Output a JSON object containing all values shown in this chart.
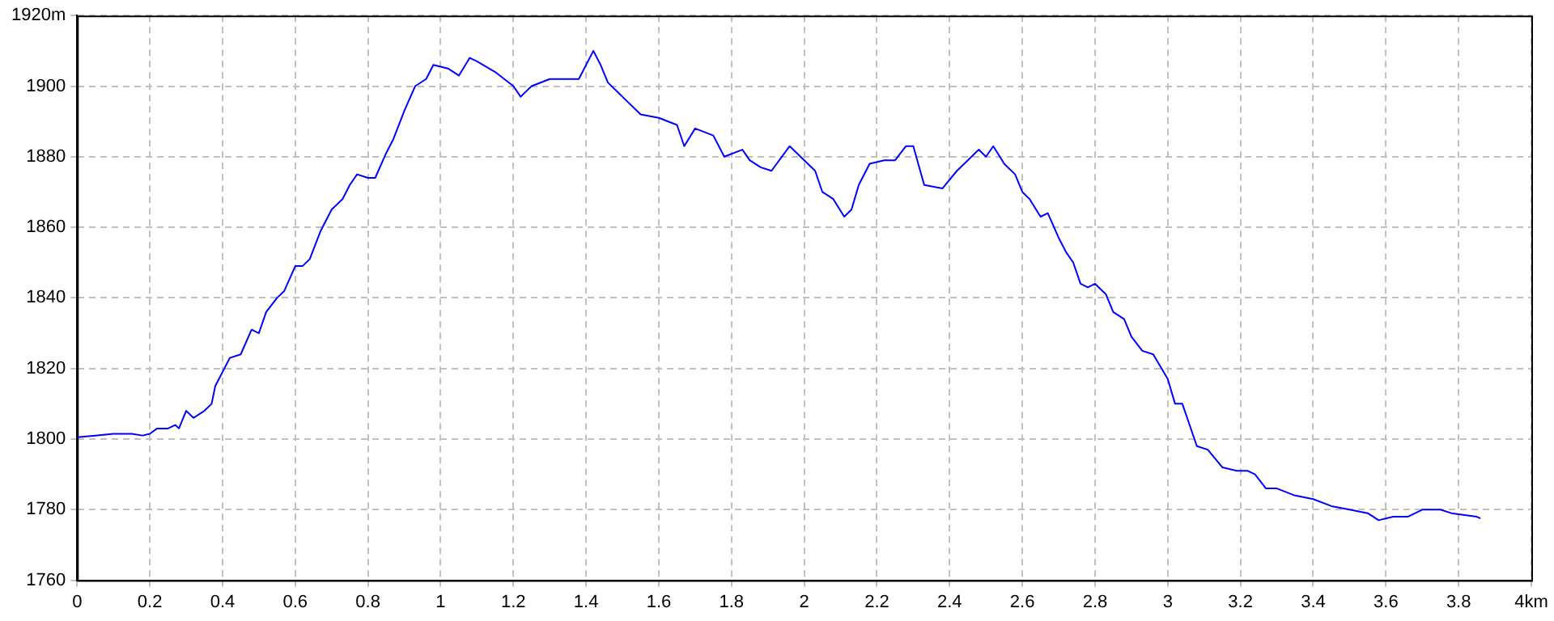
{
  "chart_data": {
    "type": "line",
    "x": [
      0,
      0.05,
      0.1,
      0.15,
      0.18,
      0.2,
      0.22,
      0.25,
      0.27,
      0.28,
      0.3,
      0.32,
      0.35,
      0.37,
      0.38,
      0.42,
      0.45,
      0.48,
      0.5,
      0.52,
      0.55,
      0.57,
      0.6,
      0.62,
      0.64,
      0.67,
      0.7,
      0.73,
      0.75,
      0.77,
      0.8,
      0.82,
      0.85,
      0.87,
      0.9,
      0.93,
      0.96,
      0.98,
      1.02,
      1.05,
      1.08,
      1.1,
      1.15,
      1.2,
      1.22,
      1.25,
      1.3,
      1.35,
      1.38,
      1.42,
      1.44,
      1.46,
      1.5,
      1.55,
      1.6,
      1.65,
      1.67,
      1.7,
      1.75,
      1.78,
      1.83,
      1.85,
      1.88,
      1.91,
      1.96,
      2.0,
      2.03,
      2.05,
      2.08,
      2.11,
      2.13,
      2.15,
      2.18,
      2.22,
      2.25,
      2.28,
      2.3,
      2.33,
      2.38,
      2.42,
      2.45,
      2.48,
      2.5,
      2.52,
      2.55,
      2.58,
      2.6,
      2.62,
      2.65,
      2.67,
      2.7,
      2.72,
      2.74,
      2.76,
      2.78,
      2.8,
      2.83,
      2.85,
      2.88,
      2.9,
      2.93,
      2.96,
      3.0,
      3.02,
      3.04,
      3.06,
      3.08,
      3.11,
      3.15,
      3.19,
      3.22,
      3.24,
      3.27,
      3.3,
      3.35,
      3.4,
      3.45,
      3.5,
      3.55,
      3.58,
      3.62,
      3.66,
      3.7,
      3.75,
      3.78,
      3.85,
      3.86
    ],
    "series": [
      {
        "color": "#0000ff",
        "values": [
          1800.5,
          1801,
          1801.5,
          1801.5,
          1801,
          1801.5,
          1803,
          1803,
          1804,
          1803,
          1808,
          1806,
          1808,
          1810,
          1815,
          1823,
          1824,
          1831,
          1830,
          1836,
          1840,
          1842,
          1849,
          1849,
          1851,
          1859,
          1865,
          1868,
          1872,
          1875,
          1874,
          1874,
          1881,
          1885,
          1893,
          1900,
          1902,
          1906,
          1905,
          1903,
          1908,
          1907,
          1904,
          1900,
          1897,
          1900,
          1902,
          1902,
          1902,
          1910,
          1906,
          1901,
          1897,
          1892,
          1891,
          1889,
          1883,
          1888,
          1886,
          1880,
          1882,
          1879,
          1877,
          1876,
          1883,
          1879,
          1876,
          1870,
          1868,
          1863,
          1865,
          1872,
          1878,
          1879,
          1879,
          1883,
          1883,
          1872,
          1871,
          1876,
          1879,
          1882,
          1880,
          1883,
          1878,
          1875,
          1870,
          1868,
          1863,
          1864,
          1857,
          1853,
          1850,
          1844,
          1843,
          1844,
          1841,
          1836,
          1834,
          1829,
          1825,
          1824,
          1817,
          1810,
          1810,
          1804,
          1798,
          1797,
          1792,
          1791,
          1791,
          1790,
          1786,
          1786,
          1784,
          1783,
          1781,
          1780,
          1779,
          1777,
          1778,
          1778,
          1780,
          1780,
          1779,
          1778,
          1777.5
        ]
      }
    ],
    "xlim": [
      0,
      4
    ],
    "xticks": [
      0,
      0.2,
      0.4,
      0.6,
      0.8,
      1,
      1.2,
      1.4,
      1.6,
      1.8,
      2,
      2.2,
      2.4,
      2.6,
      2.8,
      3,
      3.2,
      3.4,
      3.6,
      3.8,
      {
        "value": 4,
        "label": "4km"
      }
    ],
    "ylim": [
      1760,
      1920
    ],
    "yticks": [
      1760,
      1780,
      1800,
      1820,
      1840,
      1860,
      1880,
      1900,
      {
        "value": 1920,
        "label": "1920m"
      }
    ],
    "grid": true,
    "legend": false,
    "marker": "none",
    "line_style": "solid"
  }
}
